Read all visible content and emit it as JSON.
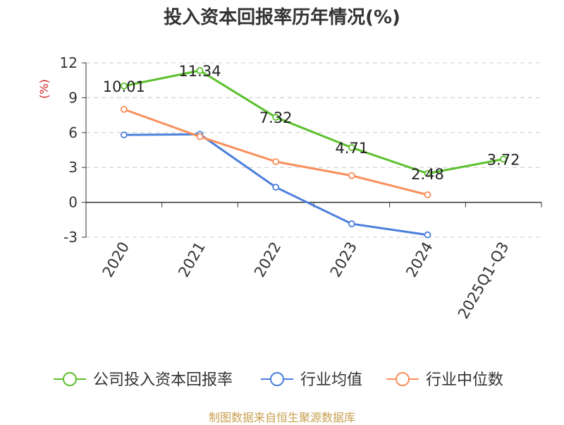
{
  "chart_data": {
    "type": "line",
    "title": "投入资本回报率历年情况(%)",
    "ylabel": "(%)",
    "categories": [
      "2020",
      "2021",
      "2022",
      "2023",
      "2024",
      "2025Q1-Q3"
    ],
    "yticks": [
      12,
      9,
      6,
      3,
      0,
      -3
    ],
    "ylim": [
      -3,
      12
    ],
    "grid": true,
    "legend": "bottom",
    "series": [
      {
        "name": "公司投入资本回报率",
        "color": "#5cc02d",
        "values": [
          10.01,
          11.34,
          7.32,
          4.71,
          2.48,
          3.72
        ],
        "labels": [
          "10.01",
          "11.34",
          "7.32",
          "4.71",
          "2.48",
          "3.72"
        ]
      },
      {
        "name": "行业均值",
        "color": "#4b7fdc",
        "values": [
          5.8,
          5.85,
          1.3,
          -1.85,
          -2.8,
          null
        ]
      },
      {
        "name": "行业中位数",
        "color": "#f98f5b",
        "values": [
          8.0,
          5.65,
          3.5,
          2.3,
          0.65,
          null
        ]
      }
    ]
  },
  "footer": {
    "source": "制图数据来自恒生聚源数据库"
  }
}
